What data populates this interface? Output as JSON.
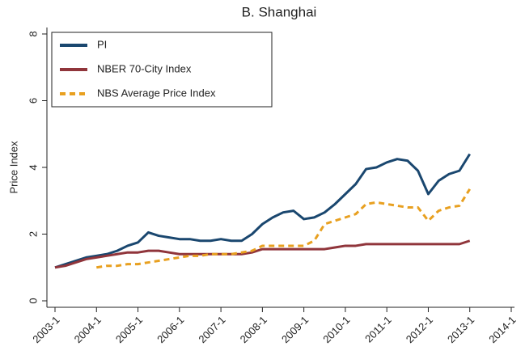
{
  "chart_data": {
    "type": "line",
    "title": "B. Shanghai",
    "y_label": "Price Index",
    "x": [
      "2003-1",
      "2003-4",
      "2003-7",
      "2003-10",
      "2004-1",
      "2004-4",
      "2004-7",
      "2004-10",
      "2005-1",
      "2005-4",
      "2005-7",
      "2005-10",
      "2006-1",
      "2006-4",
      "2006-7",
      "2006-10",
      "2007-1",
      "2007-4",
      "2007-7",
      "2007-10",
      "2008-1",
      "2008-4",
      "2008-7",
      "2008-10",
      "2009-1",
      "2009-4",
      "2009-7",
      "2009-10",
      "2010-1",
      "2010-4",
      "2010-7",
      "2010-10",
      "2011-1",
      "2011-4",
      "2011-7",
      "2011-10",
      "2012-1",
      "2012-4",
      "2012-7",
      "2012-10",
      "2013-1"
    ],
    "series": [
      {
        "name": "PI",
        "color": "#1a476f",
        "dash": false,
        "values": [
          1.0,
          1.1,
          1.2,
          1.3,
          1.35,
          1.4,
          1.5,
          1.65,
          1.75,
          2.05,
          1.95,
          1.9,
          1.85,
          1.85,
          1.8,
          1.8,
          1.85,
          1.8,
          1.8,
          2.0,
          2.3,
          2.5,
          2.65,
          2.7,
          2.45,
          2.5,
          2.65,
          2.9,
          3.2,
          3.5,
          3.95,
          4.0,
          4.15,
          4.25,
          4.2,
          3.9,
          3.2,
          3.6,
          3.8,
          3.9,
          4.4
        ]
      },
      {
        "name": "NBER 70-City Index",
        "color": "#90353b",
        "dash": false,
        "values": [
          1.0,
          1.05,
          1.15,
          1.25,
          1.3,
          1.35,
          1.4,
          1.45,
          1.45,
          1.5,
          1.5,
          1.45,
          1.4,
          1.4,
          1.4,
          1.4,
          1.4,
          1.4,
          1.4,
          1.45,
          1.55,
          1.55,
          1.55,
          1.55,
          1.55,
          1.55,
          1.55,
          1.6,
          1.65,
          1.65,
          1.7,
          1.7,
          1.7,
          1.7,
          1.7,
          1.7,
          1.7,
          1.7,
          1.7,
          1.7,
          1.8
        ]
      },
      {
        "name": "NBS Average Price Index",
        "color": "#e8a020",
        "dash": true,
        "values": [
          null,
          null,
          null,
          null,
          1.0,
          1.05,
          1.05,
          1.1,
          1.1,
          1.15,
          1.2,
          1.25,
          1.3,
          1.35,
          1.35,
          1.4,
          1.4,
          1.4,
          1.45,
          1.5,
          1.65,
          1.65,
          1.65,
          1.65,
          1.65,
          1.8,
          2.3,
          2.4,
          2.5,
          2.6,
          2.9,
          2.95,
          2.9,
          2.85,
          2.8,
          2.8,
          2.4,
          2.7,
          2.8,
          2.85,
          3.35
        ]
      }
    ],
    "xlim": [
      "2003-1",
      "2014-1"
    ],
    "xticks": [
      "2003-1",
      "2004-1",
      "2005-1",
      "2006-1",
      "2007-1",
      "2008-1",
      "2009-1",
      "2010-1",
      "2011-1",
      "2012-1",
      "2013-1",
      "2014-1"
    ],
    "ylim": [
      0,
      8
    ],
    "yticks": [
      0,
      2,
      4,
      6,
      8
    ],
    "grid": false,
    "legend": "top-left"
  }
}
